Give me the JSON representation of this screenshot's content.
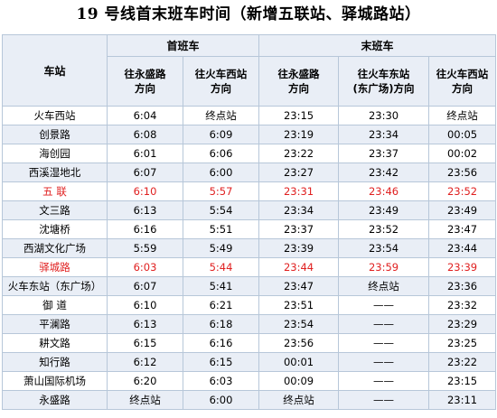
{
  "title": "19 号线首末班车时间（新增五联站、驿城路站）",
  "header": {
    "station": "车站",
    "first_train": "首班车",
    "last_train": "末班车",
    "dir_yongshenglu": "往永盛路\n方向",
    "dir_huochexizhan": "往火车西站\n方向",
    "dir_huochedongzhan": "往火车东站\n(东广场)方向"
  },
  "rows": [
    {
      "station": "火车西站",
      "f1": "6:04",
      "f2": "终点站",
      "l1": "23:15",
      "l2": "23:30",
      "l3": "终点站",
      "highlight": false
    },
    {
      "station": "创景路",
      "f1": "6:08",
      "f2": "6:09",
      "l1": "23:19",
      "l2": "23:34",
      "l3": "00:05",
      "highlight": false
    },
    {
      "station": "海创园",
      "f1": "6:01",
      "f2": "6:06",
      "l1": "23:22",
      "l2": "23:37",
      "l3": "00:02",
      "highlight": false
    },
    {
      "station": "西溪湿地北",
      "f1": "6:07",
      "f2": "6:00",
      "l1": "23:27",
      "l2": "23:42",
      "l3": "23:56",
      "highlight": false
    },
    {
      "station": "五  联",
      "f1": "6:10",
      "f2": "5:57",
      "l1": "23:31",
      "l2": "23:46",
      "l3": "23:52",
      "highlight": true
    },
    {
      "station": "文三路",
      "f1": "6:13",
      "f2": "5:54",
      "l1": "23:34",
      "l2": "23:49",
      "l3": "23:49",
      "highlight": false
    },
    {
      "station": "沈塘桥",
      "f1": "6:16",
      "f2": "5:51",
      "l1": "23:37",
      "l2": "23:52",
      "l3": "23:47",
      "highlight": false
    },
    {
      "station": "西湖文化广场",
      "f1": "5:59",
      "f2": "5:49",
      "l1": "23:39",
      "l2": "23:54",
      "l3": "23:44",
      "highlight": false
    },
    {
      "station": "驿城路",
      "f1": "6:03",
      "f2": "5:44",
      "l1": "23:44",
      "l2": "23:59",
      "l3": "23:39",
      "highlight": true
    },
    {
      "station": "火车东站（东广场）",
      "f1": "6:07",
      "f2": "5:41",
      "l1": "23:47",
      "l2": "终点站",
      "l3": "23:36",
      "highlight": false
    },
    {
      "station": "御  道",
      "f1": "6:10",
      "f2": "6:21",
      "l1": "23:51",
      "l2": "——",
      "l3": "23:32",
      "highlight": false
    },
    {
      "station": "平澜路",
      "f1": "6:13",
      "f2": "6:18",
      "l1": "23:54",
      "l2": "——",
      "l3": "23:29",
      "highlight": false
    },
    {
      "station": "耕文路",
      "f1": "6:15",
      "f2": "6:16",
      "l1": "23:56",
      "l2": "——",
      "l3": "23:25",
      "highlight": false
    },
    {
      "station": "知行路",
      "f1": "6:12",
      "f2": "6:15",
      "l1": "00:01",
      "l2": "——",
      "l3": "23:22",
      "highlight": false
    },
    {
      "station": "萧山国际机场",
      "f1": "6:20",
      "f2": "6:03",
      "l1": "00:09",
      "l2": "——",
      "l3": "23:15",
      "highlight": false
    },
    {
      "station": "永盛路",
      "f1": "终点站",
      "f2": "6:00",
      "l1": "终点站",
      "l2": "——",
      "l3": "23:11",
      "highlight": false
    }
  ]
}
